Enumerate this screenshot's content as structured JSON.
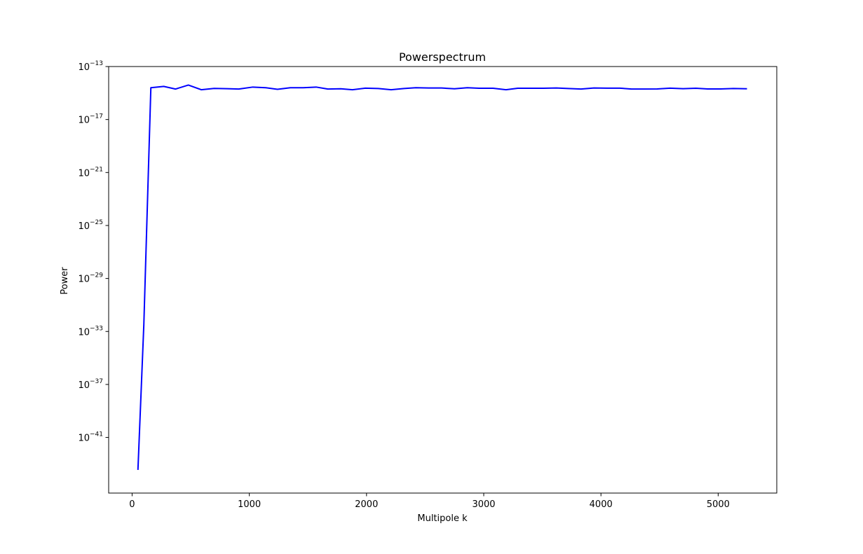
{
  "chart_data": {
    "type": "line",
    "title": "Powerspectrum",
    "xlabel": "Multipole k",
    "ylabel": "Power",
    "xscale": "linear",
    "yscale": "log",
    "xlim": [
      -200,
      5500
    ],
    "ylim_exponent": [
      -45.2,
      -13
    ],
    "xticks": [
      0,
      1000,
      2000,
      3000,
      4000,
      5000
    ],
    "yticks": [
      {
        "exponent": -13,
        "label": "−13"
      },
      {
        "exponent": -17,
        "label": "−17"
      },
      {
        "exponent": -21,
        "label": "−21"
      },
      {
        "exponent": -25,
        "label": "−25"
      },
      {
        "exponent": -29,
        "label": "−29"
      },
      {
        "exponent": -33,
        "label": "−33"
      },
      {
        "exponent": -37,
        "label": "−37"
      },
      {
        "exponent": -41,
        "label": "−41"
      }
    ],
    "ytick_base": "10",
    "grid": false,
    "legend": false,
    "series": [
      {
        "color": "#0000ff",
        "x": [
          50,
          100,
          160,
          270,
          370,
          480,
          590,
          700,
          810,
          910,
          1030,
          1140,
          1240,
          1350,
          1460,
          1570,
          1670,
          1780,
          1880,
          1990,
          2100,
          2210,
          2320,
          2420,
          2530,
          2640,
          2750,
          2860,
          2960,
          3080,
          3190,
          3290,
          3400,
          3510,
          3620,
          3720,
          3830,
          3940,
          4050,
          4160,
          4260,
          4370,
          4480,
          4590,
          4700,
          4810,
          4910,
          5020,
          5130,
          5240
        ],
        "log10_y": [
          -43.4,
          -32.5,
          -14.6,
          -14.5,
          -14.7,
          -14.4,
          -14.75,
          -14.65,
          -14.67,
          -14.7,
          -14.55,
          -14.6,
          -14.72,
          -14.6,
          -14.6,
          -14.55,
          -14.7,
          -14.68,
          -14.75,
          -14.63,
          -14.66,
          -14.75,
          -14.66,
          -14.6,
          -14.62,
          -14.62,
          -14.68,
          -14.6,
          -14.64,
          -14.64,
          -14.75,
          -14.64,
          -14.64,
          -14.64,
          -14.62,
          -14.66,
          -14.7,
          -14.62,
          -14.63,
          -14.63,
          -14.7,
          -14.7,
          -14.69,
          -14.63,
          -14.67,
          -14.64,
          -14.69,
          -14.69,
          -14.66,
          -14.68
        ]
      }
    ]
  }
}
